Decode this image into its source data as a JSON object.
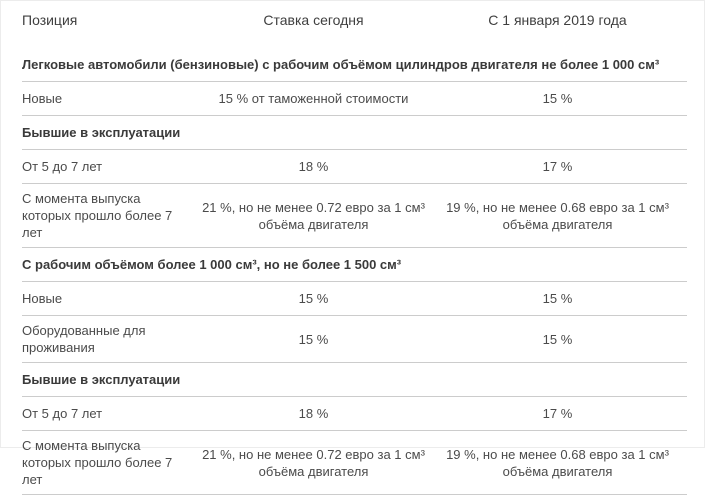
{
  "table": {
    "columns": [
      "Позиция",
      "Ставка сегодня",
      "С 1 января 2019 года"
    ],
    "rows": [
      {
        "type": "section",
        "label": "Легковые автомобили (бензиновые) с рабочим объёмом цилиндров двигателя не более 1 000 см³"
      },
      {
        "type": "data",
        "position": "Новые",
        "rate_today": "15 % от таможенной стоимости",
        "rate_2019": "15 %"
      },
      {
        "type": "section",
        "label": "Бывшие в эксплуатации"
      },
      {
        "type": "data",
        "position": "От 5 до 7 лет",
        "rate_today": "18 %",
        "rate_2019": "17 %"
      },
      {
        "type": "data",
        "position": "С момента выпуска которых прошло более 7 лет",
        "rate_today": "21 %, но не менее 0.72 евро за 1 см³ объёма двигателя",
        "rate_2019": "19 %, но не менее 0.68 евро за 1 см³ объёма двигателя"
      },
      {
        "type": "section",
        "label": "С рабочим объёмом более 1 000 см³, но не более 1 500 см³"
      },
      {
        "type": "data",
        "position": "Новые",
        "rate_today": "15 %",
        "rate_2019": "15 %"
      },
      {
        "type": "data",
        "position": "Оборудованные для проживания",
        "rate_today": "15 %",
        "rate_2019": "15 %"
      },
      {
        "type": "section",
        "label": "Бывшие в эксплуатации"
      },
      {
        "type": "data",
        "position": "От 5 до 7 лет",
        "rate_today": "18 %",
        "rate_2019": "17 %"
      },
      {
        "type": "data",
        "position": "С момента выпуска которых прошло более 7 лет",
        "rate_today": "21 %, но не менее 0.72 евро за 1 см³ объёма двигателя",
        "rate_2019": "19 %, но не менее 0.68 евро за 1 см³ объёма двигателя"
      }
    ]
  },
  "colors": {
    "text": "#4b4b4b",
    "heading": "#3a3a3a",
    "divider": "#cccccc",
    "background": "#ffffff"
  }
}
